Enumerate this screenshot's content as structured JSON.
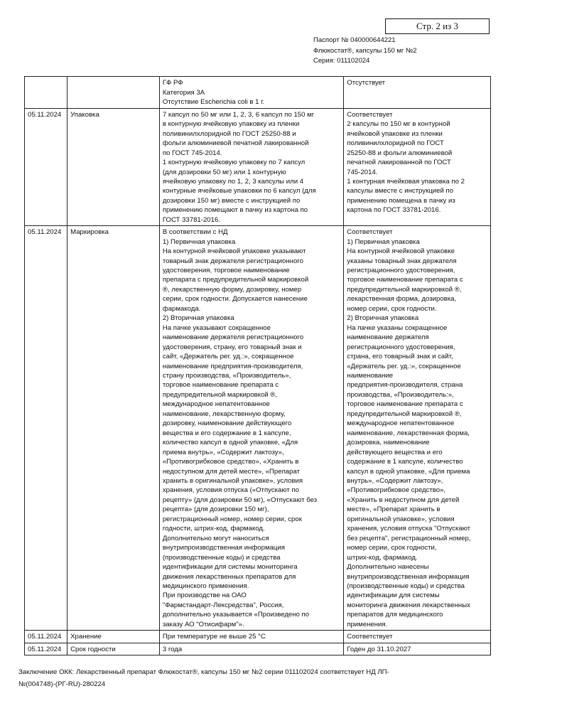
{
  "page_indicator": "Стр. 2 из 3",
  "header": {
    "passport": "Паспорт № 040000644221",
    "product": "Флюкостат®, капсулы 150 мг №2",
    "series": "Серия: 011102024"
  },
  "rows": [
    {
      "date": "",
      "parameter": "",
      "requirement": "ГФ РФ\nКатегория 3А\nОтсутствие Escherichia coli в 1 г.",
      "result": "Отсутствует"
    },
    {
      "date": "05.11.2024",
      "parameter": "Упаковка",
      "requirement": "7 капсул по 50 мг или 1, 2, 3, 6 капсул по 150 мг\nв контурную ячейковую упаковку из пленки\nполивинилхлоридной по ГОСТ 25250-88 и\nфольги алюминиевой печатной лакированной\nпо ГОСТ 745-2014.\n1 контурную ячейковую упаковку по 7 капсул\n(для дозировки 50 мг) или 1 контурную\nячейковую упаковку по 1, 2, 3 капсулы или 4\nконтурные ячейковые упаковки по 6 капсул (для\nдозировки 150 мг) вместе с инструкцией по\nприменению помещают в пачку из картона по\nГОСТ 33781-2016.",
      "result": "Соответствует\n2 капсулы по 150 мг в контурной\nячейковой упаковке из пленки\nполивинилхлоридной по ГОСТ\n25250-88 и фольги алюминиевой\nпечатной лакированной по ГОСТ\n745-2014.\n1 контурная ячейковая упаковка по 2\nкапсулы вместе с инструкцией по\nприменению помещена в пачку из\nкартона по ГОСТ 33781-2016."
    },
    {
      "date": "05.11.2024",
      "parameter": "Маркировка",
      "requirement": "В соответствии с НД\n1) Первичная упаковка\nНа контурной ячейковой упаковке указывают\nтоварный знак держателя регистрационного\nудостоверения, торговое наименование\nпрепарата с предупредительной маркировкой\n®, лекарственную форму, дозировку, номер\nсерии, срок годности. Допускается нанесение\nфармакода.\n2) Вторичная упаковка\nНа пачке указывают сокращенное\nнаименование держателя регистрационного\nудостоверения, страну, его товарный знак и\nсайт, «Держатель рег. уд.:», сокращенное\nнаименование предприятия-производителя,\nстрану производства, «Производитель»,\nторговое наименование препарата с\nпредупредительной маркировкой ®,\nмеждународное непатентованное\nнаименование, лекарственную форму,\nдозировку, наименование действующего\nвещества и его содержание в 1 капсуле,\nколичество капсул в одной упаковке, «Для\nприема внутрь», «Содержит лактозу»,\n«Противогрибковое средство», «Хранить в\nнедоступном для детей месте», «Препарат\nхранить в оригинальной упаковке», условия\nхранения, условия отпуска («Отпускают по\nрецепту» (для дозировки 50 мг), «Отпускают без\nрецепта» (для дозировки 150 мг),\nрегистрационный номер, номер серии, срок\nгодности, штрих-код, фармакод.\nДополнительно могут наноситься\nвнутрипроизводственная информация\n(производственные коды) и средства\nидентификации для системы мониторинга\nдвижения лекарственных препаратов для\nмедицинского применения.\nПри производстве на ОАО\n\"Фармстандарт-Лексредства\", Россия,\nдополнительно указывается «Произведено по\nзаказу АО \"Отисифарм\"».",
      "result": "Соответствует\n1) Первичная упаковка\nНа контурной ячейковой упаковке\nуказаны товарный знак держателя\nрегистрационного удостоверения,\nторговое наименование препарата с\nпредупредительной маркировкой ®,\nлекарственная форма, дозировка,\nномер серии, срок годности.\n2) Вторичная упаковка\nНа пачке указаны сокращенное\nнаименование держателя\nрегистрационного удостоверения,\nстрана, его товарный знак и сайт,\n«Держатель рег. уд.:», сокращенное\nнаименование\nпредприятия-производителя, страна\nпроизводства, «Производитель:»,\nторговое наименование препарата с\nпредупредительной маркировкой ®,\nмеждународное непатентованное\nнаименование, лекарственная форма,\nдозировка, наименование\nдействующего вещества и его\nсодержание в 1 капсуле, количество\nкапсул в одной упаковке, «Для приема\nвнутрь», «Содержит лактозу»,\n«Противогрибковое средство»,\n«Хранить в недоступном для детей\nместе», «Препарат хранить в\nоригинальной упаковке», условия\nхранения, условия отпуска \"Отпускают\nбез рецепта\", регистрационный номер,\nномер серии, срок годности,\nштрих-код, фармакод.\nДополнительно нанесены\nвнутрипроизводственная информация\n(производственные коды) и средства\nидентификации для системы\nмониторинга движения лекарственных\nпрепаратов для медицинского\nприменения."
    },
    {
      "date": "05.11.2024",
      "parameter": "Хранение",
      "requirement": "При температуре не выше 25 °С",
      "result": "Соответствует"
    },
    {
      "date": "05.11.2024",
      "parameter": "Срок годности",
      "requirement": "3 года",
      "result": "Годен до 31.10.2027"
    }
  ],
  "conclusion": "Заключение ОКК:  Лекарственный препарат Флюкостат®, капсулы 150 мг №2 серии 011102024 соответствует  НД ЛП-№(004748)-(РГ-RU)-280224"
}
